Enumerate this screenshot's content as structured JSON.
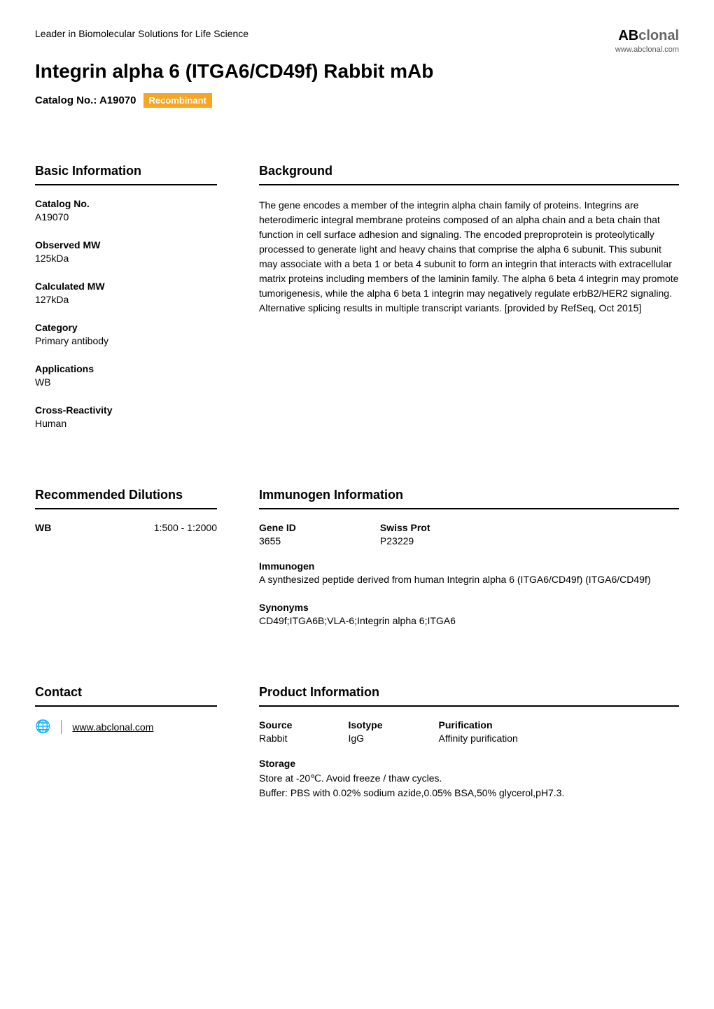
{
  "header": {
    "tagline": "Leader in Biomolecular Solutions for Life Science",
    "title": "Integrin alpha 6 (ITGA6/CD49f) Rabbit mAb",
    "catalog_label": "Catalog No.: A19070",
    "badge": "Recombinant",
    "logo_ab": "AB",
    "logo_clonal": "clonal",
    "logo_url": "www.abclonal.com"
  },
  "basic_info": {
    "heading": "Basic Information",
    "catalog_no_label": "Catalog No.",
    "catalog_no_value": "A19070",
    "observed_mw_label": "Observed MW",
    "observed_mw_value": "125kDa",
    "calculated_mw_label": "Calculated MW",
    "calculated_mw_value": "127kDa",
    "category_label": "Category",
    "category_value": "Primary antibody",
    "applications_label": "Applications",
    "applications_value": "WB",
    "cross_label": "Cross-Reactivity",
    "cross_value": "Human"
  },
  "background": {
    "heading": "Background",
    "text": "The gene encodes a member of the integrin alpha chain family of proteins. Integrins are heterodimeric integral membrane proteins composed of an alpha chain and a beta chain that function in cell surface adhesion and signaling. The encoded preproprotein is proteolytically processed to generate light and heavy chains that comprise the alpha 6 subunit. This subunit may associate with a beta 1 or beta 4 subunit to form an integrin that interacts with extracellular matrix proteins including members of the laminin family. The alpha 6 beta 4 integrin may promote tumorigenesis, while the alpha 6 beta 1 integrin may negatively regulate erbB2/HER2 signaling. Alternative splicing results in multiple transcript variants. [provided by RefSeq, Oct 2015]"
  },
  "dilutions": {
    "heading": "Recommended Dilutions",
    "app": "WB",
    "range": "1:500 - 1:2000"
  },
  "immunogen": {
    "heading": "Immunogen Information",
    "gene_id_label": "Gene ID",
    "gene_id_value": "3655",
    "swiss_prot_label": "Swiss Prot",
    "swiss_prot_value": "P23229",
    "immunogen_label": "Immunogen",
    "immunogen_value": "A synthesized peptide derived from human Integrin alpha 6 (ITGA6/CD49f) (ITGA6/CD49f)",
    "synonyms_label": "Synonyms",
    "synonyms_value": "CD49f;ITGA6B;VLA-6;Integrin alpha 6;ITGA6"
  },
  "contact": {
    "heading": "Contact",
    "link": "www.abclonal.com"
  },
  "product": {
    "heading": "Product Information",
    "source_label": "Source",
    "source_value": "Rabbit",
    "isotype_label": "Isotype",
    "isotype_value": "IgG",
    "purification_label": "Purification",
    "purification_value": "Affinity purification",
    "storage_label": "Storage",
    "storage_line1": "Store at -20℃. Avoid freeze / thaw cycles.",
    "storage_line2": "Buffer: PBS with 0.02% sodium azide,0.05% BSA,50% glycerol,pH7.3."
  },
  "colors": {
    "badge_bg": "#f5a623",
    "badge_text": "#ffffff",
    "border": "#000000",
    "text": "#000000"
  }
}
